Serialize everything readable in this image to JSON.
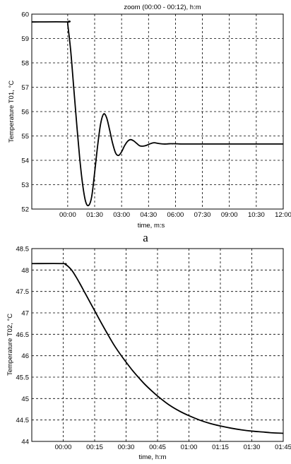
{
  "chart_data": [
    {
      "type": "line",
      "title": "zoom (00:00 - 00:12), h:m",
      "xlabel": "time, m:s",
      "ylabel": "Temperature T01, °C",
      "caption": "a",
      "x_ticks": [
        "00:00",
        "01:30",
        "03:00",
        "04:30",
        "06:00",
        "07:30",
        "09:00",
        "10:30",
        "12:00"
      ],
      "y_ticks": [
        "52",
        "53",
        "54",
        "55",
        "56",
        "57",
        "58",
        "59",
        "60"
      ],
      "xlim": [
        -120,
        720
      ],
      "ylim": [
        52,
        60
      ],
      "grid": true,
      "series": [
        {
          "x": [
            -120,
            -1,
            0,
            10,
            20,
            30,
            40,
            50,
            60,
            70,
            80,
            90,
            100,
            110,
            120,
            130,
            140,
            150,
            160,
            170,
            180,
            190,
            200,
            210,
            220,
            230,
            240,
            250,
            260,
            270,
            280,
            290,
            300,
            310,
            320,
            330,
            340,
            350,
            360,
            380,
            420,
            480,
            600,
            720
          ],
          "y": [
            59.68,
            59.68,
            59.6,
            58.5,
            57.0,
            55.5,
            54.1,
            53.0,
            52.3,
            52.15,
            52.5,
            53.5,
            54.6,
            55.5,
            55.9,
            55.75,
            55.25,
            54.7,
            54.3,
            54.2,
            54.35,
            54.6,
            54.78,
            54.85,
            54.8,
            54.7,
            54.6,
            54.58,
            54.6,
            54.65,
            54.7,
            54.72,
            54.7,
            54.68,
            54.67,
            54.67,
            54.68,
            54.68,
            54.68,
            54.67,
            54.67,
            54.67,
            54.67,
            54.67
          ]
        }
      ]
    },
    {
      "type": "line",
      "title": "",
      "xlabel": "time, h:m",
      "ylabel": "Temperature T02, °C",
      "caption": "",
      "x_ticks": [
        "00:00",
        "00:15",
        "00:30",
        "00:45",
        "01:00",
        "01:15",
        "01:30",
        "01:45"
      ],
      "y_ticks": [
        "44",
        "44.5",
        "45",
        "45.5",
        "46",
        "46.5",
        "47",
        "47.5",
        "48",
        "48.5"
      ],
      "xlim": [
        -15,
        105
      ],
      "ylim": [
        44,
        48.5
      ],
      "grid": true,
      "series": [
        {
          "x": [
            -15,
            0,
            1,
            2,
            4,
            6,
            8,
            10,
            12,
            15,
            18,
            21,
            24,
            27,
            30,
            33,
            36,
            39,
            42,
            45,
            50,
            55,
            60,
            65,
            70,
            75,
            80,
            85,
            90,
            95,
            100,
            105
          ],
          "y": [
            48.15,
            48.15,
            48.13,
            48.1,
            48.0,
            47.85,
            47.68,
            47.5,
            47.32,
            47.05,
            46.78,
            46.52,
            46.27,
            46.05,
            45.85,
            45.66,
            45.49,
            45.33,
            45.19,
            45.06,
            44.87,
            44.72,
            44.6,
            44.5,
            44.42,
            44.36,
            44.31,
            44.27,
            44.24,
            44.22,
            44.2,
            44.19
          ]
        }
      ]
    }
  ]
}
